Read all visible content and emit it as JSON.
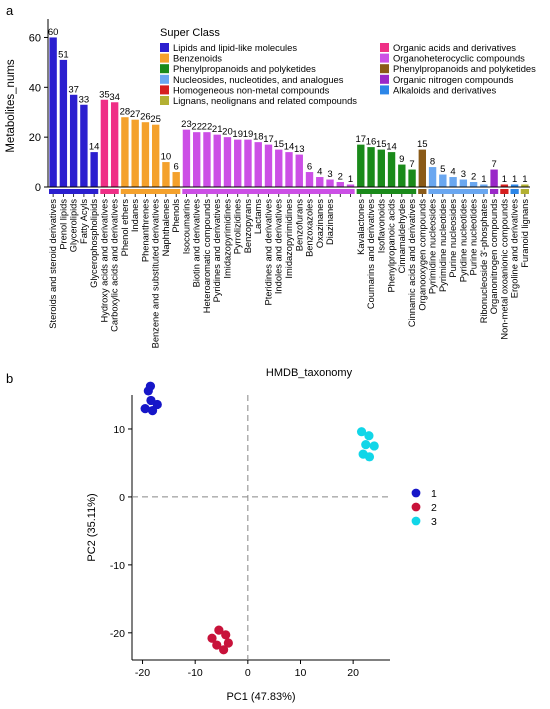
{
  "panel_a": {
    "label": "a"
  },
  "panel_b": {
    "label": "b"
  },
  "chart_data": [
    {
      "type": "bar",
      "ylabel": "Metabolites_nums",
      "xlabel": "HMDB_taxonomy",
      "ylim": [
        0,
        65
      ],
      "yticks": [
        0,
        20,
        40,
        60
      ],
      "legend": {
        "title": "Super Class",
        "placement": "top-right",
        "entries": [
          {
            "name": "Lipids and lipid-like molecules",
            "color": "#2b1fcf"
          },
          {
            "name": "Organic acids and derivatives",
            "color": "#ef2f86"
          },
          {
            "name": "Benzenoids",
            "color": "#f4a12c"
          },
          {
            "name": "Organoheterocyclic compounds",
            "color": "#cc4fe6"
          },
          {
            "name": "Phenylpropanoids and polyketides",
            "color": "#1a8a1a"
          },
          {
            "name": "Phenylpropanoids and polyketides",
            "color": "#8a5a18"
          },
          {
            "name": "Nucleosides, nucleotides, and analogues",
            "color": "#6aa7f0"
          },
          {
            "name": "Organic nitrogen compounds",
            "color": "#9a28c8"
          },
          {
            "name": "Homogeneous non-metal compounds",
            "color": "#d61f1f"
          },
          {
            "name": "Alkaloids and derivatives",
            "color": "#2c86e8"
          },
          {
            "name": "Lignans, neolignans and related compounds",
            "color": "#b3b032"
          }
        ]
      },
      "groups": [
        {
          "color": "#2b1fcf",
          "bars": [
            {
              "category": "Steroids and steroid derivatives",
              "value": 60
            },
            {
              "category": "Prenol lipids",
              "value": 51
            },
            {
              "category": "Glycerolipids",
              "value": 37
            },
            {
              "category": "Fatty Acyls",
              "value": 33
            },
            {
              "category": "Glycerophospholipids",
              "value": 14
            }
          ]
        },
        {
          "color": "#ef2f86",
          "bars": [
            {
              "category": "Hydroxy acids and derivatives",
              "value": 35
            },
            {
              "category": "Carboxylic acids and derivatives",
              "value": 34
            }
          ]
        },
        {
          "color": "#f4a12c",
          "bars": [
            {
              "category": "Phenol ethers",
              "value": 28
            },
            {
              "category": "Indanes",
              "value": 27
            },
            {
              "category": "Phenanthrenes",
              "value": 26
            },
            {
              "category": "Benzene and substituted derivatives",
              "value": 25
            },
            {
              "category": "Naphthalenes",
              "value": 10
            },
            {
              "category": "Phenols",
              "value": 6
            }
          ]
        },
        {
          "color": "#cc4fe6",
          "bars": [
            {
              "category": "Isocoumarins",
              "value": 23
            },
            {
              "category": "Biotin and derivatives",
              "value": 22
            },
            {
              "category": "Heteroaromatic compounds",
              "value": 22
            },
            {
              "category": "Pyridines and derivatives",
              "value": 21
            },
            {
              "category": "Imidazopyrimidines",
              "value": 20
            },
            {
              "category": "Pyrrolizidines",
              "value": 19
            },
            {
              "category": "Benzopyrans",
              "value": 19
            },
            {
              "category": "Lactams",
              "value": 18
            },
            {
              "category": "Pteridines and derivatives",
              "value": 17
            },
            {
              "category": "Indoles and derivatives",
              "value": 15
            },
            {
              "category": "Imidazopyrimidines",
              "value": 14
            },
            {
              "category": "Benzofurans",
              "value": 13
            },
            {
              "category": "Benzoxazoles",
              "value": 6
            },
            {
              "category": "Oxazinanes",
              "value": 4
            },
            {
              "category": "Diazinanes",
              "value": 3
            },
            {
              "category": "",
              "value": 2
            },
            {
              "category": "",
              "value": 1
            }
          ]
        },
        {
          "color": "#1a8a1a",
          "bars": [
            {
              "category": "Kavalactones",
              "value": 17
            },
            {
              "category": "Coumarins and derivatives",
              "value": 16
            },
            {
              "category": "Isoflavonoids",
              "value": 15
            },
            {
              "category": "Phenylpropanoic acids",
              "value": 14
            },
            {
              "category": "Cinnamaldehydes",
              "value": 9
            },
            {
              "category": "Cinnamic acids and derivatives",
              "value": 7
            }
          ]
        },
        {
          "color": "#8a5a18",
          "bars": [
            {
              "category": "Organooxygen compounds",
              "value": 15
            }
          ]
        },
        {
          "color": "#6aa7f0",
          "bars": [
            {
              "category": "Pyrimidine nucleosides",
              "value": 8
            },
            {
              "category": "Pyrimidine nucleotides",
              "value": 5
            },
            {
              "category": "Purine nucleosides",
              "value": 4
            },
            {
              "category": "Pyridine nucleotides",
              "value": 3
            },
            {
              "category": "Purine nucleotides",
              "value": 2
            },
            {
              "category": "Ribonucleoside 3'-phosphates",
              "value": 1
            }
          ]
        },
        {
          "color": "#9a28c8",
          "bars": [
            {
              "category": "Organonitrogen compounds",
              "value": 7
            }
          ]
        },
        {
          "color": "#d61f1f",
          "bars": [
            {
              "category": "Non-metal oxoanionic compounds",
              "value": 1
            }
          ]
        },
        {
          "color": "#2c86e8",
          "bars": [
            {
              "category": "Ergoline and derivatives",
              "value": 1
            }
          ]
        },
        {
          "color": "#b3b032",
          "bars": [
            {
              "category": "Furanoid lignans",
              "value": 1
            }
          ]
        }
      ]
    },
    {
      "type": "scatter",
      "xlabel": "PC1 (47.83%)",
      "ylabel": "PC2 (35.11%)",
      "xlim": [
        -22,
        27
      ],
      "ylim": [
        -24,
        15
      ],
      "xticks": [
        -20,
        -10,
        0,
        10,
        20
      ],
      "yticks": [
        -20,
        -10,
        0,
        10
      ],
      "reference_lines": {
        "x": 0,
        "y": 0
      },
      "legend": {
        "placement": "right"
      },
      "series": [
        {
          "name": "1",
          "color": "#1616c8",
          "points": [
            [
              -19.5,
              13.0
            ],
            [
              -18.4,
              14.2
            ],
            [
              -17.2,
              13.6
            ],
            [
              -18.1,
              12.7
            ],
            [
              -18.9,
              15.6
            ],
            [
              -18.5,
              16.3
            ]
          ]
        },
        {
          "name": "2",
          "color": "#c8123a",
          "points": [
            [
              -6.8,
              -20.8
            ],
            [
              -5.5,
              -19.6
            ],
            [
              -4.2,
              -20.3
            ],
            [
              -5.9,
              -21.8
            ],
            [
              -4.6,
              -22.5
            ],
            [
              -3.7,
              -21.5
            ]
          ]
        },
        {
          "name": "3",
          "color": "#11d6e8",
          "points": [
            [
              21.6,
              9.6
            ],
            [
              23.0,
              9.0
            ],
            [
              22.4,
              7.7
            ],
            [
              24.0,
              7.5
            ],
            [
              21.9,
              6.3
            ],
            [
              23.1,
              5.9
            ]
          ]
        }
      ]
    }
  ]
}
